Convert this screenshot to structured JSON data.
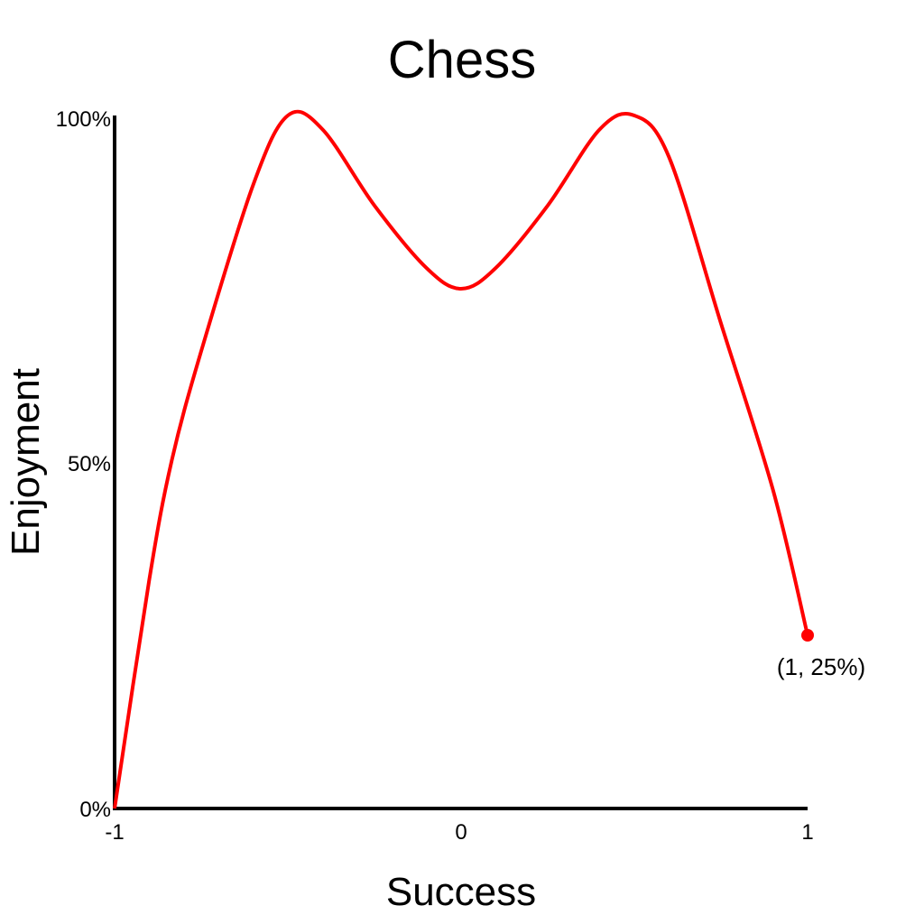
{
  "chart_data": {
    "type": "line",
    "title": "Chess",
    "xlabel": "Success",
    "ylabel": "Enjoyment",
    "xlim": [
      -1,
      1
    ],
    "ylim": [
      0,
      100
    ],
    "x_ticks": [
      "-1",
      "0",
      "1"
    ],
    "y_ticks": [
      "0%",
      "50%",
      "100%"
    ],
    "grid": false,
    "series": [
      {
        "color": "#ff0000",
        "x": [
          -1,
          -0.9,
          -0.836,
          -0.75,
          -0.6,
          -0.5,
          -0.4,
          -0.25,
          -0.1,
          0,
          0.1,
          0.25,
          0.4,
          0.5,
          0.6,
          0.75,
          0.9,
          1
        ],
        "y": [
          0,
          33,
          50,
          66,
          90,
          100,
          98,
          87,
          78,
          75,
          78,
          87,
          98,
          100,
          94,
          70,
          46,
          25
        ]
      }
    ],
    "annotation": {
      "x": 1,
      "y": 25,
      "label": "(1, 25%)"
    }
  }
}
